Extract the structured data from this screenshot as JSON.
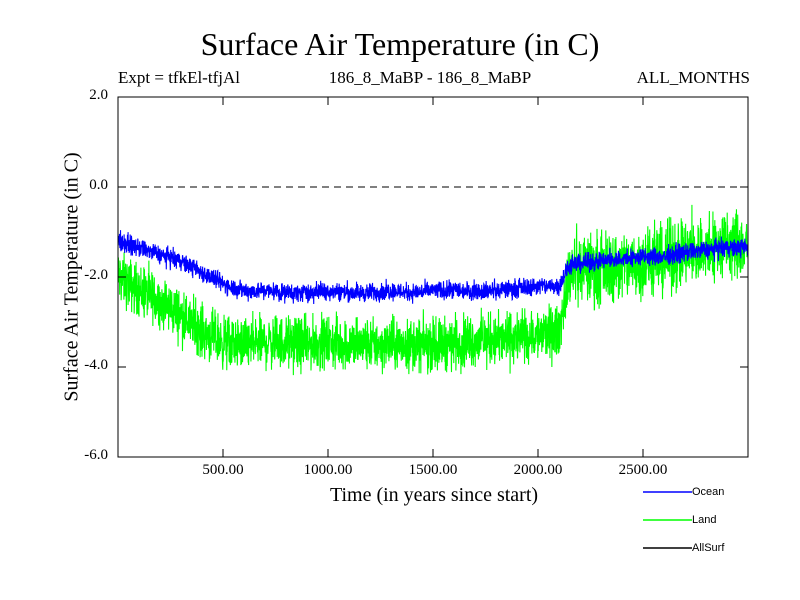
{
  "chart_data": {
    "type": "line",
    "title": "Surface Air Temperature (in C)",
    "subtitle_left": "Expt = tfkEl-tfjAl",
    "subtitle_center": "186_8_MaBP - 186_8_MaBP",
    "subtitle_right": "ALL_MONTHS",
    "xlabel": "Time (in years since start)",
    "ylabel": "Surface Air Temperature (in C)",
    "xlim": [
      0,
      3000
    ],
    "ylim": [
      -6.0,
      2.0
    ],
    "xticks": [
      500,
      1000,
      1500,
      2000,
      2500
    ],
    "xtick_labels": [
      "500.00",
      "1000.00",
      "1500.00",
      "2000.00",
      "2500.00"
    ],
    "yticks": [
      2.0,
      0.0,
      -2.0,
      -4.0,
      -6.0
    ],
    "ytick_labels": [
      "2.0",
      "0.0",
      "-2.0",
      "-4.0",
      "-6.0"
    ],
    "reference_line": {
      "y": 0.0,
      "style": "dashed"
    },
    "legend_position": "bottom-right, below plot",
    "series": [
      {
        "name": "Ocean",
        "color": "#0000ff",
        "x": [
          0,
          100,
          200,
          300,
          400,
          500,
          600,
          700,
          800,
          900,
          1000,
          1100,
          1200,
          1300,
          1400,
          1500,
          1600,
          1700,
          1800,
          1900,
          2000,
          2100,
          2150,
          2200,
          2300,
          2400,
          2500,
          2600,
          2700,
          2800,
          2900,
          3000
        ],
        "mean": [
          -1.2,
          -1.35,
          -1.5,
          -1.65,
          -1.9,
          -2.15,
          -2.3,
          -2.3,
          -2.35,
          -2.35,
          -2.3,
          -2.35,
          -2.35,
          -2.3,
          -2.35,
          -2.3,
          -2.3,
          -2.3,
          -2.3,
          -2.25,
          -2.2,
          -2.2,
          -1.75,
          -1.7,
          -1.65,
          -1.6,
          -1.55,
          -1.55,
          -1.45,
          -1.4,
          -1.35,
          -1.35
        ],
        "noise": 0.3
      },
      {
        "name": "Land",
        "color": "#00ff00",
        "x": [
          0,
          100,
          200,
          300,
          400,
          500,
          600,
          700,
          800,
          900,
          1000,
          1100,
          1200,
          1300,
          1400,
          1500,
          1600,
          1700,
          1800,
          1900,
          2000,
          2100,
          2150,
          2200,
          2300,
          2400,
          2500,
          2600,
          2700,
          2800,
          2900,
          3000
        ],
        "mean": [
          -2.0,
          -2.3,
          -2.55,
          -2.85,
          -3.2,
          -3.45,
          -3.5,
          -3.45,
          -3.45,
          -3.5,
          -3.45,
          -3.5,
          -3.5,
          -3.5,
          -3.5,
          -3.5,
          -3.45,
          -3.4,
          -3.4,
          -3.35,
          -3.3,
          -3.2,
          -1.9,
          -1.8,
          -1.8,
          -1.75,
          -1.7,
          -1.6,
          -1.5,
          -1.4,
          -1.3,
          -1.3
        ],
        "noise": 0.85
      },
      {
        "name": "AllSurf",
        "color": "#000000",
        "x": [],
        "mean": []
      }
    ]
  },
  "legend": {
    "ocean_label": "Ocean",
    "land_label": "Land",
    "allsurf_label": "AllSurf"
  }
}
